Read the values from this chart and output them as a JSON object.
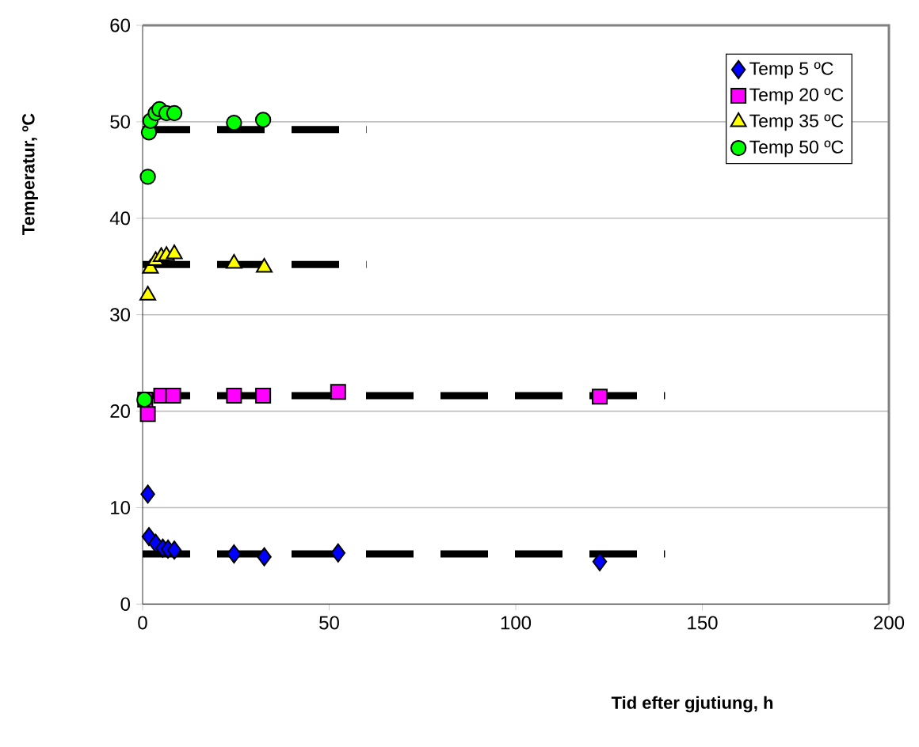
{
  "chart_data": {
    "type": "scatter",
    "xlabel": "Tid efter gjutiung, h",
    "ylabel": "Temperatur, ºC",
    "xlim": [
      0,
      200
    ],
    "ylim": [
      0,
      60
    ],
    "xticks": [
      0,
      50,
      100,
      150,
      200
    ],
    "yticks": [
      0,
      10,
      20,
      30,
      40,
      50,
      60
    ],
    "grid": "y",
    "legend": "top right",
    "series": [
      {
        "type": "line",
        "x": [
          0,
          140
        ],
        "values": [
          5.2,
          5.2
        ],
        "color": "#000000",
        "line_style": "dashed",
        "marker": "none"
      },
      {
        "type": "line",
        "x": [
          0,
          140
        ],
        "values": [
          21.6,
          21.6
        ],
        "color": "#000000",
        "line_style": "dashed",
        "marker": "none"
      },
      {
        "type": "line",
        "x": [
          0,
          60
        ],
        "values": [
          35.2,
          35.2
        ],
        "color": "#000000",
        "line_style": "dashed",
        "marker": "none"
      },
      {
        "type": "line",
        "x": [
          0,
          60
        ],
        "values": [
          49.2,
          49.2
        ],
        "color": "#000000",
        "line_style": "dashed",
        "marker": "none"
      },
      {
        "name": "Temp 5 ºC",
        "marker": "diamond",
        "color": "#0000ff",
        "x": [
          1.4,
          1.7,
          3.5,
          5.4,
          6.8,
          8.5,
          24.5,
          32.6,
          52.4,
          122.5
        ],
        "values": [
          11.4,
          7.0,
          6.3,
          5.8,
          5.7,
          5.6,
          5.2,
          4.9,
          5.3,
          4.4
        ]
      },
      {
        "name": "Temp 20 ºC",
        "marker": "square",
        "color": "#ff00ff",
        "x": [
          1.4,
          0.7,
          5.0,
          8.2,
          24.5,
          32.3,
          52.4,
          122.5
        ],
        "values": [
          19.7,
          21.2,
          21.6,
          21.6,
          21.6,
          21.6,
          22.0,
          21.5
        ]
      },
      {
        "name": "Temp 35 ºC",
        "marker": "triangle",
        "color": "#ffff00",
        "x": [
          1.4,
          2.1,
          3.5,
          5.0,
          6.4,
          8.5,
          24.5,
          32.6
        ],
        "values": [
          32.0,
          34.8,
          35.6,
          36.0,
          36.1,
          36.3,
          35.3,
          34.9
        ]
      },
      {
        "name": "Temp 50 ºC",
        "marker": "circle",
        "color": "#00ff00",
        "x": [
          0.5,
          1.4,
          1.7,
          2.1,
          3.5,
          4.5,
          6.4,
          8.5,
          24.5,
          32.3
        ],
        "values": [
          21.2,
          44.3,
          48.9,
          50.1,
          50.9,
          51.3,
          50.9,
          50.9,
          49.9,
          50.2
        ]
      }
    ]
  }
}
